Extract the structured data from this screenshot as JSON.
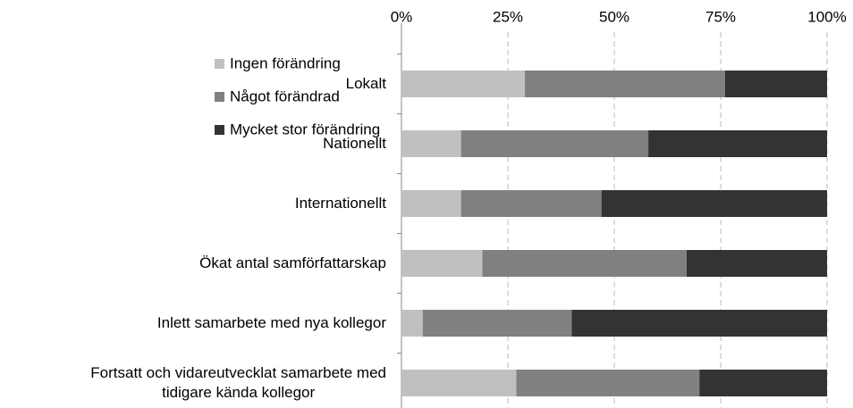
{
  "chart_data": {
    "type": "stacked-barh",
    "categories": [
      "Lokalt",
      "Nationellt",
      "Internationellt",
      "Ökat antal samförfattarskap",
      "Inlett samarbete med nya kollegor",
      "Fortsatt och vidareutvecklat samarbete med\ntidigare kända kollegor"
    ],
    "series": [
      {
        "name": "Ingen förändring",
        "color": "#c0c0c0",
        "values": [
          29,
          14,
          14,
          19,
          5,
          27
        ]
      },
      {
        "name": "Något förändrad",
        "color": "#808080",
        "values": [
          47,
          44,
          33,
          48,
          35,
          43
        ]
      },
      {
        "name": "Mycket stor förändring",
        "color": "#333333",
        "values": [
          24,
          42,
          53,
          33,
          60,
          30
        ]
      }
    ],
    "xlim": [
      0,
      100
    ],
    "xticks": [
      {
        "value": 0,
        "label": "0%"
      },
      {
        "value": 25,
        "label": "25%"
      },
      {
        "value": 50,
        "label": "50%"
      },
      {
        "value": 75,
        "label": "75%"
      },
      {
        "value": 100,
        "label": "100%"
      }
    ],
    "grid": true,
    "legend": "top-left"
  }
}
